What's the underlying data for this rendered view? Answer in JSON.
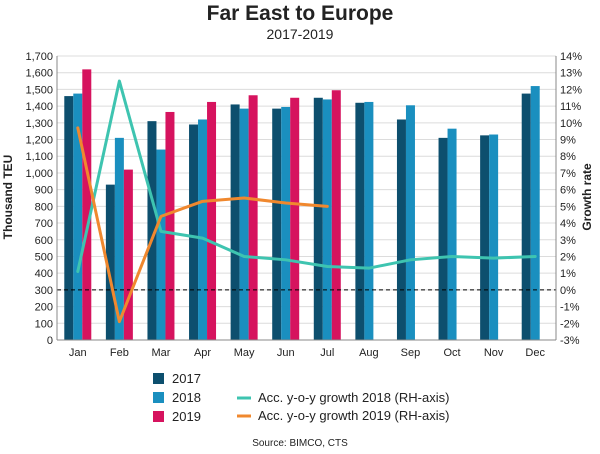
{
  "chart_data": {
    "type": "bar",
    "title": "Far East to Europe",
    "subtitle": "2017-2019",
    "ylabel": "Thousand TEU",
    "y2label": "Growth rate",
    "ylim": [
      0,
      1700
    ],
    "y2lim": [
      -3,
      14
    ],
    "yticks": [
      "0",
      "100",
      "200",
      "300",
      "400",
      "500",
      "600",
      "700",
      "800",
      "900",
      "1,000",
      "1,100",
      "1,200",
      "1,300",
      "1,400",
      "1,500",
      "1,600",
      "1,700"
    ],
    "y2ticks": [
      "-3%",
      "-2%",
      "-1%",
      "0%",
      "1%",
      "2%",
      "3%",
      "4%",
      "5%",
      "6%",
      "7%",
      "8%",
      "9%",
      "10%",
      "11%",
      "12%",
      "13%",
      "14%"
    ],
    "zero_line": "dashed line at 0% growth",
    "categories": [
      "Jan",
      "Feb",
      "Mar",
      "Apr",
      "May",
      "Jun",
      "Jul",
      "Aug",
      "Sep",
      "Oct",
      "Nov",
      "Dec"
    ],
    "series": [
      {
        "name": "2017",
        "kind": "bar",
        "axis": "left",
        "color": "#0d4f6e",
        "values": [
          1460,
          930,
          1310,
          1290,
          1410,
          1385,
          1450,
          1420,
          1320,
          1210,
          1225,
          1475
        ]
      },
      {
        "name": "2018",
        "kind": "bar",
        "axis": "left",
        "color": "#1a8fbf",
        "values": [
          1475,
          1210,
          1140,
          1320,
          1385,
          1395,
          1440,
          1425,
          1405,
          1265,
          1230,
          1520
        ]
      },
      {
        "name": "2019",
        "kind": "bar",
        "axis": "left",
        "color": "#d6135e",
        "values": [
          1620,
          1020,
          1365,
          1425,
          1465,
          1450,
          1495,
          null,
          null,
          null,
          null,
          null
        ]
      },
      {
        "name": "Acc. y-o-y growth 2018 (RH-axis)",
        "kind": "line",
        "axis": "right",
        "color": "#3ec4b0",
        "values": [
          1.1,
          12.5,
          3.5,
          3.1,
          2.0,
          1.8,
          1.4,
          1.3,
          1.8,
          2.0,
          1.9,
          2.0
        ]
      },
      {
        "name": "Acc. y-o-y growth 2019 (RH-axis)",
        "kind": "line",
        "axis": "right",
        "color": "#f0882e",
        "values": [
          9.7,
          -1.9,
          4.4,
          5.3,
          5.5,
          5.2,
          5.0,
          null,
          null,
          null,
          null,
          null
        ]
      }
    ],
    "source": "Source: BIMCO, CTS"
  }
}
